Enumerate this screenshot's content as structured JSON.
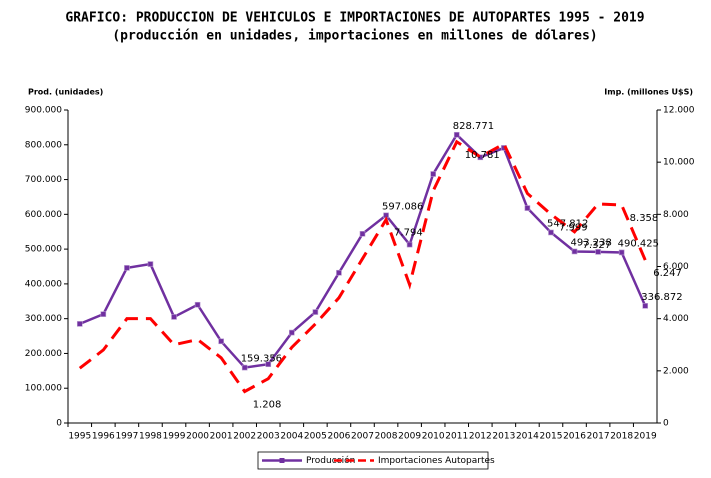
{
  "chart_data": {
    "type": "line",
    "title": "GRAFICO: PRODUCCION DE VEHICULOS E IMPORTACIONES DE AUTOPARTES 1995 - 2019",
    "subtitle": "(producción en unidades, importaciones en millones de dólares)",
    "y_label": "Prod. (unidades)",
    "y2_label": "Imp. (millones U$S)",
    "categories": [
      "1995",
      "1996",
      "1997",
      "1998",
      "1999",
      "2000",
      "2001",
      "2002",
      "2003",
      "2004",
      "2005",
      "2006",
      "2007",
      "2008",
      "2009",
      "2010",
      "2011",
      "2012",
      "2013",
      "2014",
      "2015",
      "2016",
      "2017",
      "2018",
      "2019"
    ],
    "series": [
      {
        "name": "Producción",
        "color": "#7030a0",
        "line_style": "solid",
        "marker": "square",
        "values": [
          285000,
          313000,
          446000,
          457000,
          305000,
          340000,
          235000,
          159356,
          169000,
          260000,
          319000,
          432000,
          544000,
          597086,
          513000,
          716000,
          828771,
          764000,
          791000,
          618000,
          547812,
          493238,
          492000,
          490425,
          336872
        ],
        "value_labels": [
          null,
          null,
          null,
          null,
          null,
          null,
          null,
          "159.356",
          null,
          null,
          null,
          null,
          null,
          "597.086",
          null,
          null,
          "828.771",
          null,
          null,
          null,
          "547.812",
          "493.238",
          null,
          "490.425",
          "336.872"
        ]
      },
      {
        "name": "Importaciones Autopartes",
        "color": "#ff0000",
        "line_style": "dashed",
        "axis": "y2",
        "values": [
          2100,
          2800,
          4000,
          4000,
          3000,
          3200,
          2500,
          1208,
          1700,
          2900,
          3800,
          4800,
          6300,
          7794,
          5300,
          8900,
          10781,
          10200,
          10700,
          8800,
          7999,
          7327,
          8400,
          8358,
          6247
        ],
        "value_labels": [
          null,
          null,
          null,
          null,
          null,
          null,
          null,
          "1.208",
          null,
          null,
          null,
          null,
          null,
          "7.794",
          null,
          null,
          "10.781",
          null,
          null,
          null,
          "7.999",
          "7.327",
          null,
          "8.358",
          "6.247"
        ]
      }
    ],
    "ylim": [
      0,
      900000
    ],
    "yticks": [
      0,
      {
        "value": 100000,
        "label": "100.000"
      },
      {
        "value": 200000,
        "label": "200.000"
      },
      {
        "value": 300000,
        "label": "300.000"
      },
      {
        "value": 400000,
        "label": "400.000"
      },
      {
        "value": 500000,
        "label": "500.000"
      },
      {
        "value": 600000,
        "label": "600.000"
      },
      {
        "value": 700000,
        "label": "700.000"
      },
      {
        "value": 800000,
        "label": "800.000"
      },
      {
        "value": 900000,
        "label": "900.000"
      }
    ],
    "y2lim": [
      0,
      12000
    ],
    "y2ticks": [
      0,
      {
        "value": 2000,
        "label": "2.000"
      },
      {
        "value": 4000,
        "label": "4.000"
      },
      {
        "value": 6000,
        "label": "6.000"
      },
      {
        "value": 8000,
        "label": "8.000"
      },
      {
        "value": 10000,
        "label": "10.000"
      },
      {
        "value": 12000,
        "label": "12.000"
      }
    ],
    "grid": false,
    "legend": "bottom"
  }
}
